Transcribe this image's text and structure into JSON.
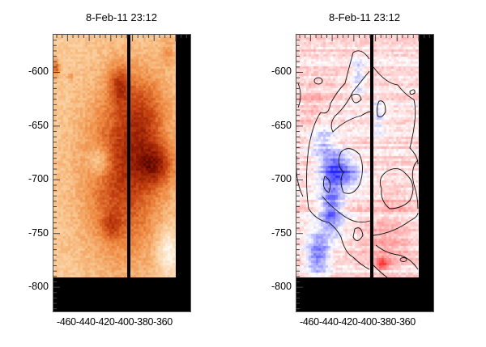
{
  "chart_data": [
    {
      "type": "heatmap",
      "title": "8-Feb-11 23:12",
      "colormap": "red-temperature",
      "xlim": [
        -473,
        -345
      ],
      "ylim": [
        -824,
        -565
      ],
      "xticks": [
        "-460",
        "-440",
        "-420",
        "-400",
        "-380",
        "-360"
      ],
      "xtick_values": [
        -460,
        -440,
        -420,
        -400,
        -380,
        -360
      ],
      "yticks": [
        "-600",
        "-650",
        "-700",
        "-750",
        "-800"
      ],
      "ytick_values": [
        -600,
        -650,
        -700,
        -750,
        -800
      ],
      "grid": false
    },
    {
      "type": "heatmap",
      "title": "8-Feb-11 23:12",
      "colormap": "blue-white-red",
      "contours": true,
      "xlim": [
        -473,
        -345
      ],
      "ylim": [
        -824,
        -565
      ],
      "xticks": [
        "-460",
        "-440",
        "-420",
        "-400",
        "-380",
        "-360"
      ],
      "xtick_values": [
        -460,
        -440,
        -420,
        -400,
        -380,
        -360
      ],
      "yticks": [
        "-600",
        "-650",
        "-700",
        "-750",
        "-800"
      ],
      "ytick_values": [
        -600,
        -650,
        -700,
        -750,
        -800
      ],
      "grid": false
    }
  ]
}
